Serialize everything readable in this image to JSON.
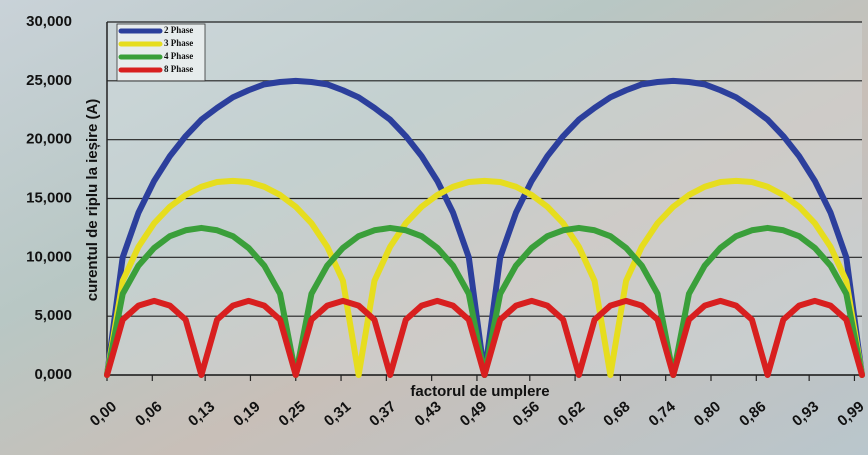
{
  "chart_data": {
    "type": "line",
    "xlabel": "factorul de umplere",
    "ylabel": "curentul de riplu la ieșire (A)",
    "x": [
      0,
      0.0208,
      0.0417,
      0.0625,
      0.0833,
      0.1042,
      0.125,
      0.1458,
      0.1667,
      0.1875,
      0.2083,
      0.2292,
      0.25,
      0.2708,
      0.2917,
      0.3125,
      0.3333,
      0.3542,
      0.375,
      0.3958,
      0.4167,
      0.4375,
      0.4583,
      0.4792,
      0.5,
      0.5208,
      0.5417,
      0.5625,
      0.5833,
      0.6042,
      0.625,
      0.6458,
      0.6667,
      0.6875,
      0.7083,
      0.7292,
      0.75,
      0.7708,
      0.7917,
      0.8125,
      0.8333,
      0.8542,
      0.875,
      0.8958,
      0.9167,
      0.9375,
      0.9583,
      0.9792,
      1
    ],
    "series": [
      {
        "name": "2 Phase",
        "color": "#2c3f9c",
        "values": [
          0,
          10,
          13.8,
          16.5,
          18.6,
          20.3,
          21.7,
          22.7,
          23.6,
          24.2,
          24.7,
          24.9,
          25,
          24.9,
          24.7,
          24.2,
          23.6,
          22.7,
          21.7,
          20.3,
          18.6,
          16.5,
          13.8,
          10,
          0,
          10,
          13.8,
          16.5,
          18.6,
          20.3,
          21.7,
          22.7,
          23.6,
          24.2,
          24.7,
          24.9,
          25,
          24.9,
          24.7,
          24.2,
          23.6,
          22.7,
          21.7,
          20.3,
          18.6,
          16.5,
          13.8,
          10,
          0
        ]
      },
      {
        "name": "3 Phase",
        "color": "#e6dd1e",
        "values": [
          0,
          8,
          10.9,
          12.9,
          14.3,
          15.3,
          16,
          16.4,
          16.5,
          16.4,
          16,
          15.3,
          14.3,
          12.9,
          10.9,
          8,
          0,
          8,
          10.9,
          12.9,
          14.3,
          15.3,
          16,
          16.4,
          16.5,
          16.4,
          16,
          15.3,
          14.3,
          12.9,
          10.9,
          8,
          0,
          8,
          10.9,
          12.9,
          14.3,
          15.3,
          16,
          16.4,
          16.5,
          16.4,
          16,
          15.3,
          14.3,
          12.9,
          10.9,
          8,
          0
        ]
      },
      {
        "name": "4 Phase",
        "color": "#3a9f3a",
        "values": [
          0,
          6.9,
          9.3,
          10.8,
          11.8,
          12.3,
          12.5,
          12.3,
          11.8,
          10.8,
          9.3,
          6.9,
          0,
          6.9,
          9.3,
          10.8,
          11.8,
          12.3,
          12.5,
          12.3,
          11.8,
          10.8,
          9.3,
          6.9,
          0,
          6.9,
          9.3,
          10.8,
          11.8,
          12.3,
          12.5,
          12.3,
          11.8,
          10.8,
          9.3,
          6.9,
          0,
          6.9,
          9.3,
          10.8,
          11.8,
          12.3,
          12.5,
          12.3,
          11.8,
          10.8,
          9.3,
          6.9,
          0
        ]
      },
      {
        "name": "8 Phase",
        "color": "#d81f1f",
        "values": [
          0,
          4.7,
          5.9,
          6.3,
          5.9,
          4.7,
          0,
          4.7,
          5.9,
          6.3,
          5.9,
          4.7,
          0,
          4.7,
          5.9,
          6.3,
          5.9,
          4.7,
          0,
          4.7,
          5.9,
          6.3,
          5.9,
          4.7,
          0,
          4.7,
          5.9,
          6.3,
          5.9,
          4.7,
          0,
          4.7,
          5.9,
          6.3,
          5.9,
          4.7,
          0,
          4.7,
          5.9,
          6.3,
          5.9,
          4.7,
          0,
          4.7,
          5.9,
          6.3,
          5.9,
          4.7,
          0
        ]
      }
    ],
    "xlim": [
      0,
      1
    ],
    "xticks": [
      {
        "value": 0,
        "label": "0,00"
      },
      {
        "value": 0.06,
        "label": "0,06"
      },
      {
        "value": 0.13,
        "label": "0,13"
      },
      {
        "value": 0.19,
        "label": "0,19"
      },
      {
        "value": 0.25,
        "label": "0,25"
      },
      {
        "value": 0.31,
        "label": "0,31"
      },
      {
        "value": 0.37,
        "label": "0,37"
      },
      {
        "value": 0.43,
        "label": "0,43"
      },
      {
        "value": 0.49,
        "label": "0,49"
      },
      {
        "value": 0.56,
        "label": "0,56"
      },
      {
        "value": 0.62,
        "label": "0,62"
      },
      {
        "value": 0.68,
        "label": "0,68"
      },
      {
        "value": 0.74,
        "label": "0,74"
      },
      {
        "value": 0.8,
        "label": "0,80"
      },
      {
        "value": 0.86,
        "label": "0,86"
      },
      {
        "value": 0.93,
        "label": "0,93"
      },
      {
        "value": 0.99,
        "label": "0,99"
      }
    ],
    "ylim": [
      0,
      30
    ],
    "yticks": [
      {
        "value": 0,
        "label": "0,000"
      },
      {
        "value": 5,
        "label": "5,000"
      },
      {
        "value": 10,
        "label": "10,000"
      },
      {
        "value": 15,
        "label": "15,000"
      },
      {
        "value": 20,
        "label": "20,000"
      },
      {
        "value": 25,
        "label": "25,000"
      },
      {
        "value": 30,
        "label": "30,000"
      }
    ],
    "grid": true,
    "legend": "upper left"
  }
}
